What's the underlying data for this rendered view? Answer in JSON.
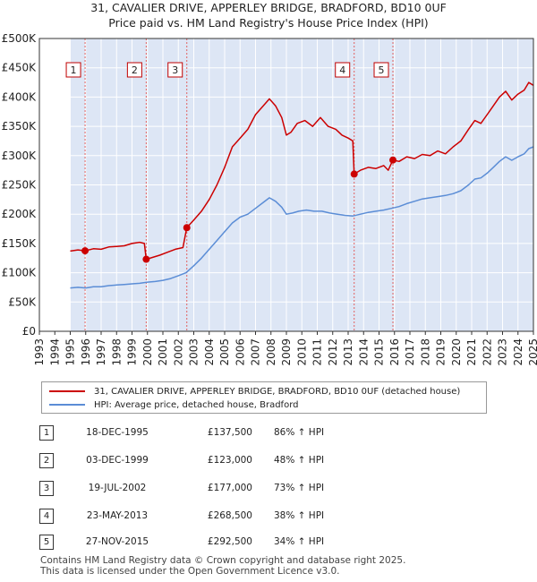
{
  "title_line1": "31, CAVALIER DRIVE, APPERLEY BRIDGE, BRADFORD, BD10 0UF",
  "title_line2": "Price paid vs. HM Land Registry's House Price Index (HPI)",
  "colors": {
    "property": "#cc0000",
    "hpi": "#5b8dd6",
    "shade": "#dde6f5",
    "vline": "#e06060"
  },
  "chart_data": {
    "type": "line",
    "xlim": [
      1993,
      2025
    ],
    "ylim": [
      0,
      500000
    ],
    "y_ticks": [
      {
        "v": 0,
        "label": "£0"
      },
      {
        "v": 50000,
        "label": "£50K"
      },
      {
        "v": 100000,
        "label": "£100K"
      },
      {
        "v": 150000,
        "label": "£150K"
      },
      {
        "v": 200000,
        "label": "£200K"
      },
      {
        "v": 250000,
        "label": "£250K"
      },
      {
        "v": 300000,
        "label": "£300K"
      },
      {
        "v": 350000,
        "label": "£350K"
      },
      {
        "v": 400000,
        "label": "£400K"
      },
      {
        "v": 450000,
        "label": "£450K"
      },
      {
        "v": 500000,
        "label": "£500K"
      }
    ],
    "x_ticks": [
      1993,
      1994,
      1995,
      1996,
      1997,
      1998,
      1999,
      2000,
      2001,
      2002,
      2003,
      2004,
      2005,
      2006,
      2007,
      2008,
      2009,
      2010,
      2011,
      2012,
      2013,
      2014,
      2015,
      2016,
      2017,
      2018,
      2019,
      2020,
      2021,
      2022,
      2023,
      2024,
      2025
    ],
    "data_start": 1995.0,
    "series": [
      {
        "name": "31, CAVALIER DRIVE, APPERLEY BRIDGE, BRADFORD, BD10 0UF (detached house)",
        "color": "#cc0000",
        "points": [
          [
            1995.0,
            137000
          ],
          [
            1995.5,
            139000
          ],
          [
            1995.96,
            137500
          ],
          [
            1996.5,
            141000
          ],
          [
            1997.0,
            140000
          ],
          [
            1997.5,
            144000
          ],
          [
            1998.0,
            145000
          ],
          [
            1998.5,
            146000
          ],
          [
            1999.0,
            150000
          ],
          [
            1999.5,
            152000
          ],
          [
            1999.8,
            150000
          ],
          [
            1999.92,
            123000
          ],
          [
            2000.3,
            126000
          ],
          [
            2000.8,
            130000
          ],
          [
            2001.3,
            135000
          ],
          [
            2001.8,
            140000
          ],
          [
            2002.3,
            143000
          ],
          [
            2002.55,
            177000
          ],
          [
            2003.0,
            190000
          ],
          [
            2003.5,
            205000
          ],
          [
            2004.0,
            225000
          ],
          [
            2004.5,
            250000
          ],
          [
            2005.0,
            280000
          ],
          [
            2005.5,
            315000
          ],
          [
            2006.0,
            330000
          ],
          [
            2006.5,
            345000
          ],
          [
            2007.0,
            370000
          ],
          [
            2007.5,
            385000
          ],
          [
            2007.9,
            397000
          ],
          [
            2008.3,
            385000
          ],
          [
            2008.7,
            365000
          ],
          [
            2009.0,
            335000
          ],
          [
            2009.3,
            340000
          ],
          [
            2009.7,
            355000
          ],
          [
            2010.2,
            360000
          ],
          [
            2010.7,
            350000
          ],
          [
            2011.2,
            365000
          ],
          [
            2011.7,
            350000
          ],
          [
            2012.2,
            345000
          ],
          [
            2012.6,
            335000
          ],
          [
            2013.0,
            330000
          ],
          [
            2013.3,
            325000
          ],
          [
            2013.39,
            268500
          ],
          [
            2013.8,
            275000
          ],
          [
            2014.3,
            280000
          ],
          [
            2014.8,
            278000
          ],
          [
            2015.3,
            283000
          ],
          [
            2015.6,
            275000
          ],
          [
            2015.9,
            292500
          ],
          [
            2016.3,
            290000
          ],
          [
            2016.8,
            298000
          ],
          [
            2017.3,
            295000
          ],
          [
            2017.8,
            302000
          ],
          [
            2018.3,
            300000
          ],
          [
            2018.8,
            308000
          ],
          [
            2019.3,
            303000
          ],
          [
            2019.8,
            315000
          ],
          [
            2020.3,
            325000
          ],
          [
            2020.8,
            345000
          ],
          [
            2021.2,
            360000
          ],
          [
            2021.6,
            355000
          ],
          [
            2022.0,
            370000
          ],
          [
            2022.4,
            385000
          ],
          [
            2022.8,
            400000
          ],
          [
            2023.2,
            410000
          ],
          [
            2023.6,
            395000
          ],
          [
            2024.0,
            405000
          ],
          [
            2024.4,
            412000
          ],
          [
            2024.7,
            425000
          ],
          [
            2025.0,
            420000
          ]
        ]
      },
      {
        "name": "HPI: Average price, detached house, Bradford",
        "color": "#5b8dd6",
        "points": [
          [
            1995.0,
            74000
          ],
          [
            1995.5,
            75000
          ],
          [
            1996.0,
            74000
          ],
          [
            1996.5,
            76000
          ],
          [
            1997.0,
            76000
          ],
          [
            1997.5,
            78000
          ],
          [
            1998.0,
            79000
          ],
          [
            1998.5,
            80000
          ],
          [
            1999.0,
            81000
          ],
          [
            1999.5,
            82000
          ],
          [
            2000.0,
            84000
          ],
          [
            2000.5,
            85000
          ],
          [
            2001.0,
            87000
          ],
          [
            2001.5,
            90000
          ],
          [
            2002.0,
            95000
          ],
          [
            2002.5,
            100000
          ],
          [
            2003.0,
            112000
          ],
          [
            2003.5,
            125000
          ],
          [
            2004.0,
            140000
          ],
          [
            2004.5,
            155000
          ],
          [
            2005.0,
            170000
          ],
          [
            2005.5,
            185000
          ],
          [
            2006.0,
            195000
          ],
          [
            2006.5,
            200000
          ],
          [
            2007.0,
            210000
          ],
          [
            2007.5,
            220000
          ],
          [
            2007.9,
            228000
          ],
          [
            2008.3,
            222000
          ],
          [
            2008.7,
            212000
          ],
          [
            2009.0,
            200000
          ],
          [
            2009.4,
            202000
          ],
          [
            2009.8,
            205000
          ],
          [
            2010.3,
            207000
          ],
          [
            2010.8,
            205000
          ],
          [
            2011.3,
            205000
          ],
          [
            2011.8,
            202000
          ],
          [
            2012.3,
            200000
          ],
          [
            2012.8,
            198000
          ],
          [
            2013.3,
            197000
          ],
          [
            2013.8,
            200000
          ],
          [
            2014.3,
            203000
          ],
          [
            2014.8,
            205000
          ],
          [
            2015.3,
            207000
          ],
          [
            2015.8,
            210000
          ],
          [
            2016.3,
            213000
          ],
          [
            2016.8,
            218000
          ],
          [
            2017.3,
            222000
          ],
          [
            2017.8,
            226000
          ],
          [
            2018.3,
            228000
          ],
          [
            2018.8,
            230000
          ],
          [
            2019.3,
            232000
          ],
          [
            2019.8,
            235000
          ],
          [
            2020.3,
            240000
          ],
          [
            2020.8,
            250000
          ],
          [
            2021.2,
            260000
          ],
          [
            2021.6,
            262000
          ],
          [
            2022.0,
            270000
          ],
          [
            2022.4,
            280000
          ],
          [
            2022.8,
            290000
          ],
          [
            2023.2,
            298000
          ],
          [
            2023.6,
            292000
          ],
          [
            2024.0,
            298000
          ],
          [
            2024.4,
            303000
          ],
          [
            2024.7,
            312000
          ],
          [
            2025.0,
            315000
          ]
        ]
      }
    ],
    "sales": [
      {
        "n": "1",
        "x": 1995.96,
        "price": 137500
      },
      {
        "n": "2",
        "x": 1999.92,
        "price": 123000
      },
      {
        "n": "3",
        "x": 2002.55,
        "price": 177000
      },
      {
        "n": "4",
        "x": 2013.39,
        "price": 268500
      },
      {
        "n": "5",
        "x": 2015.9,
        "price": 292500
      }
    ]
  },
  "legend": {
    "property": "31, CAVALIER DRIVE, APPERLEY BRIDGE, BRADFORD, BD10 0UF (detached house)",
    "hpi": "HPI: Average price, detached house, Bradford"
  },
  "transactions": [
    {
      "n": "1",
      "date": "18-DEC-1995",
      "price": "£137,500",
      "hpi": "86% ↑ HPI"
    },
    {
      "n": "2",
      "date": "03-DEC-1999",
      "price": "£123,000",
      "hpi": "48% ↑ HPI"
    },
    {
      "n": "3",
      "date": "19-JUL-2002",
      "price": "£177,000",
      "hpi": "73% ↑ HPI"
    },
    {
      "n": "4",
      "date": "23-MAY-2013",
      "price": "£268,500",
      "hpi": "38% ↑ HPI"
    },
    {
      "n": "5",
      "date": "27-NOV-2015",
      "price": "£292,500",
      "hpi": "34% ↑ HPI"
    }
  ],
  "footer_line1": "Contains HM Land Registry data © Crown copyright and database right 2025.",
  "footer_line2": "This data is licensed under the Open Government Licence v3.0."
}
